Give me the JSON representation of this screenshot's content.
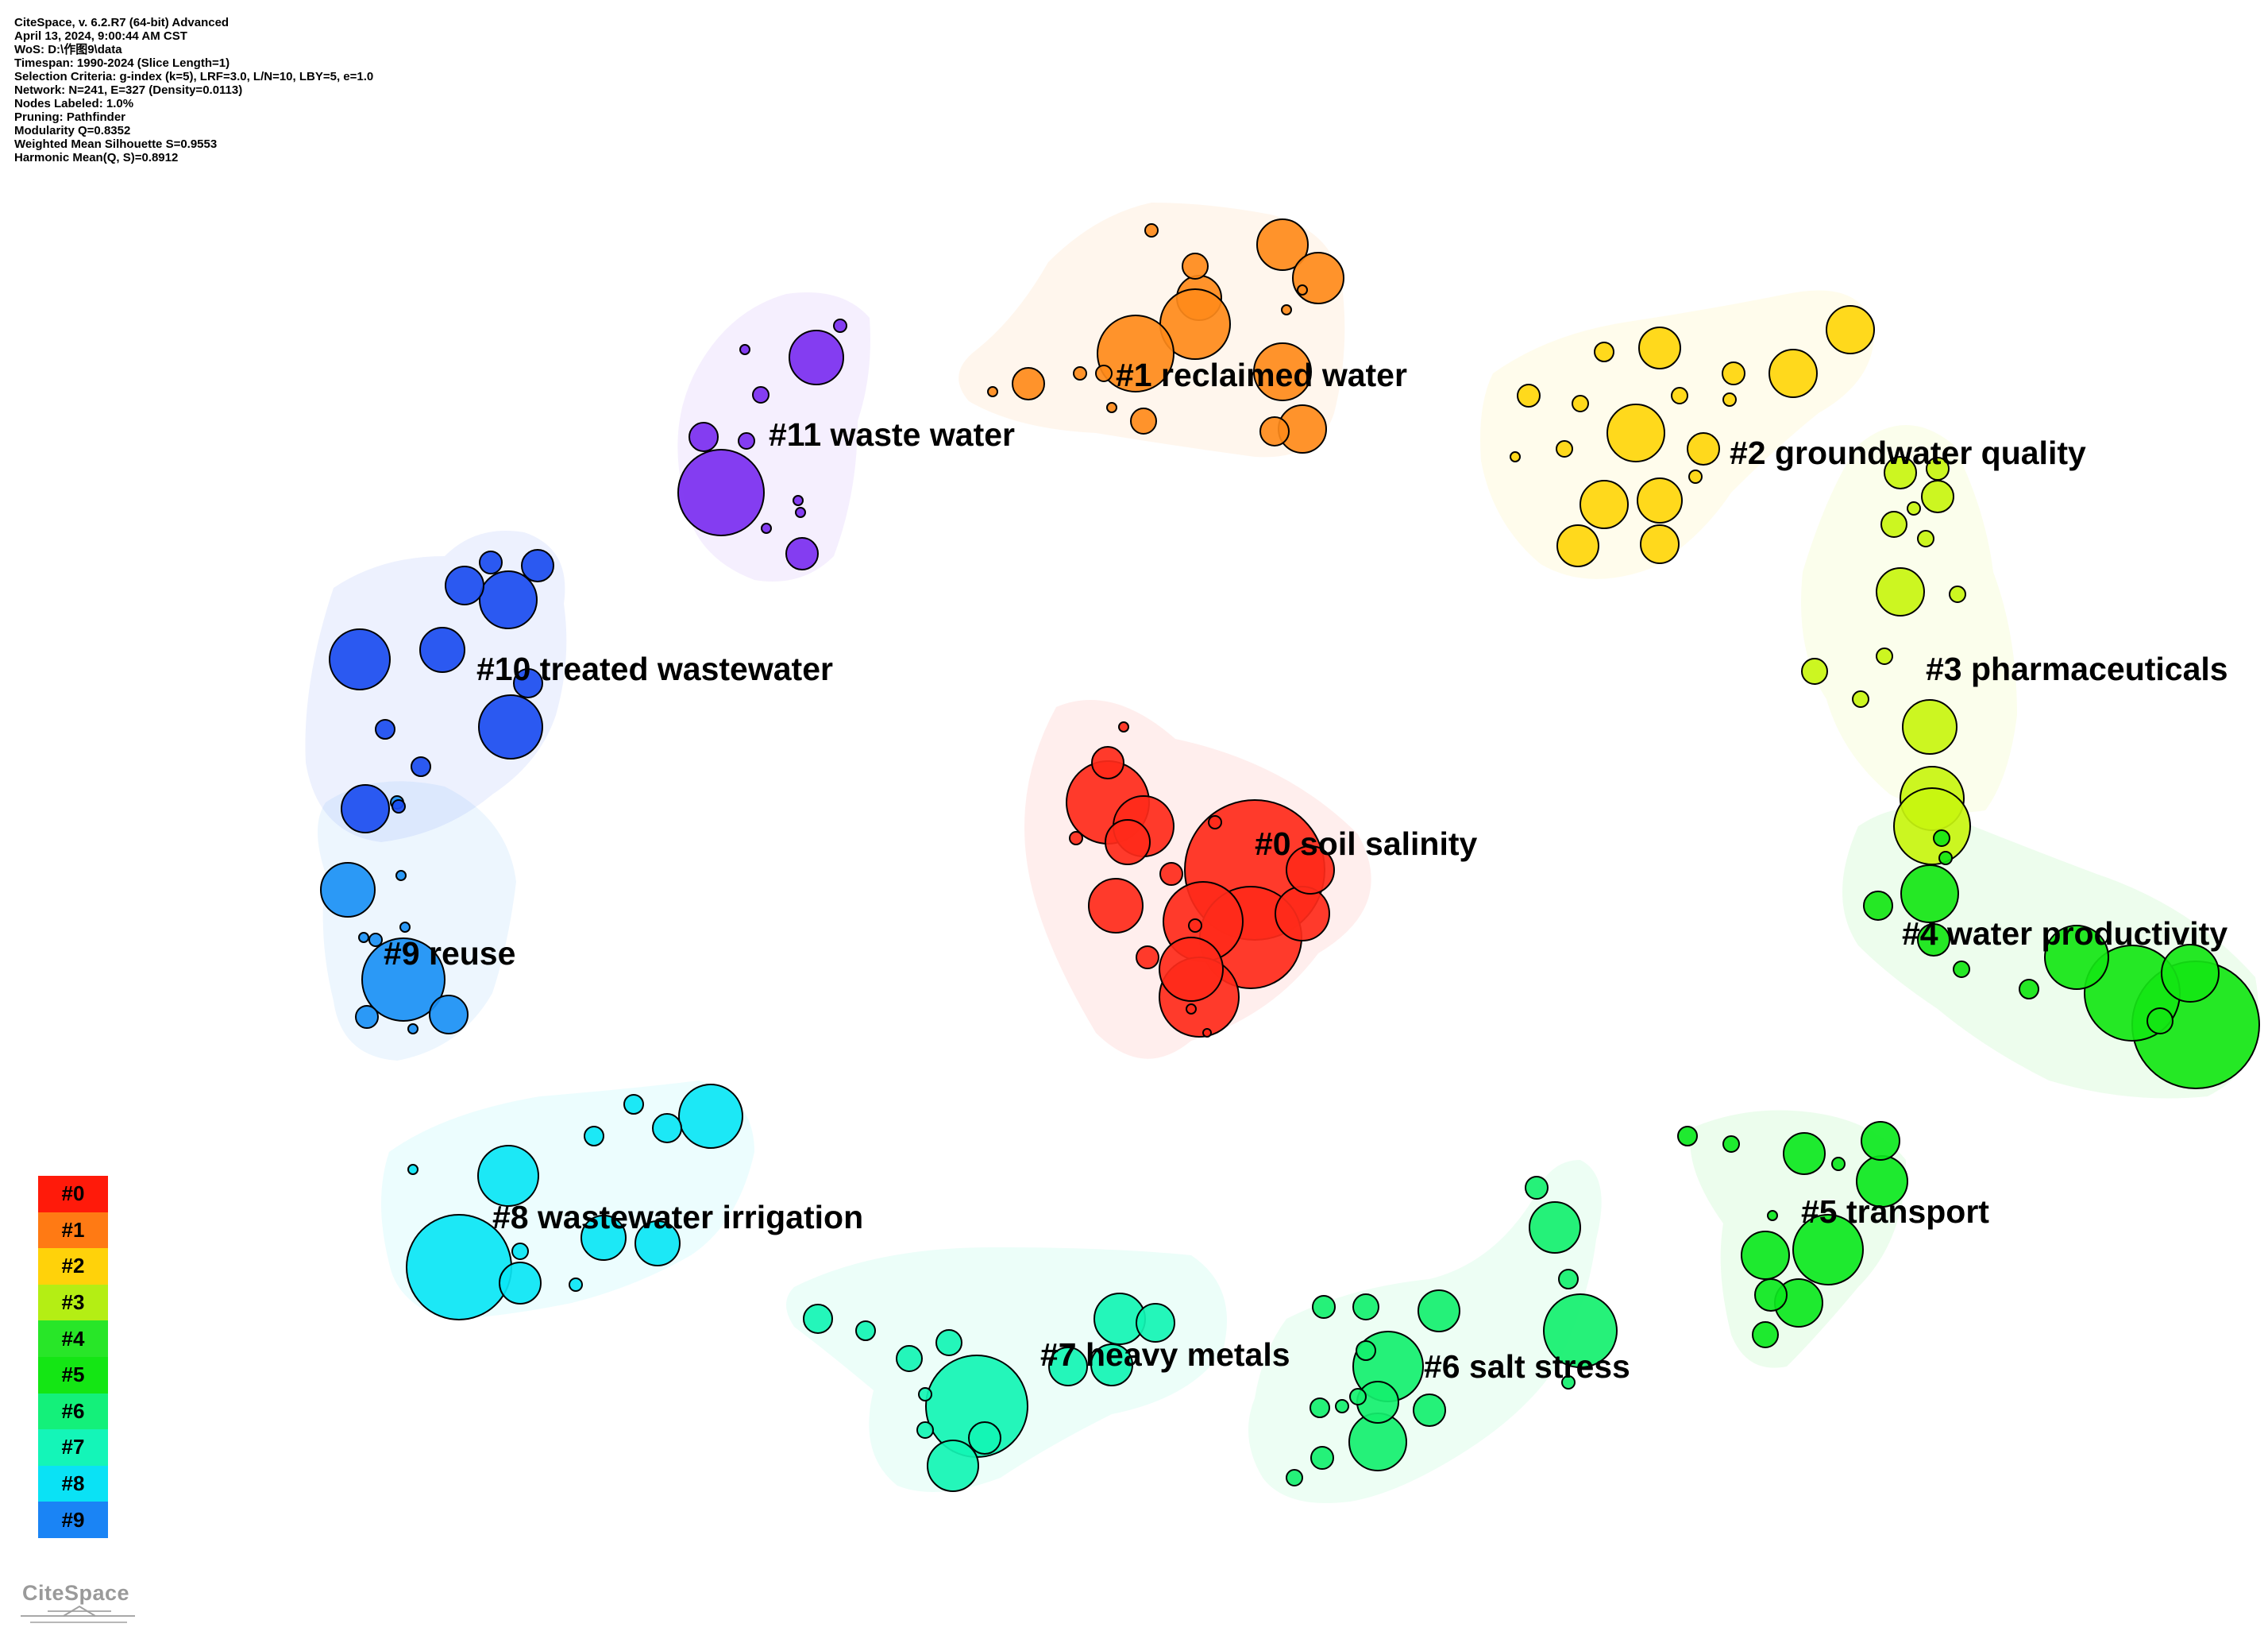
{
  "info_lines": [
    "CiteSpace, v. 6.2.R7 (64-bit) Advanced",
    "April 13, 2024, 9:00:44 AM CST",
    "WoS: D:\\作图9\\data",
    "Timespan: 1990-2024 (Slice Length=1)",
    "Selection Criteria: g-index (k=5), LRF=3.0, L/N=10, LBY=5, e=1.0",
    "Network: N=241, E=327 (Density=0.0113)",
    "Nodes Labeled: 1.0%",
    "Pruning: Pathfinder",
    "Modularity Q=0.8352",
    "Weighted Mean Silhouette S=0.9553",
    "Harmonic Mean(Q, S)=0.8912"
  ],
  "clusters": [
    {
      "id": "0",
      "label": "#0 soil salinity",
      "color": "#ff2a1a"
    },
    {
      "id": "1",
      "label": "#1 reclaimed water",
      "color": "#ff8a1a"
    },
    {
      "id": "2",
      "label": "#2 groundwater quality",
      "color": "#ffd60a"
    },
    {
      "id": "3",
      "label": "#3 pharmaceuticals",
      "color": "#c8f50f"
    },
    {
      "id": "4",
      "label": "#4 water productivity",
      "color": "#14e614"
    },
    {
      "id": "5",
      "label": "#5 transport",
      "color": "#0ce81e"
    },
    {
      "id": "6",
      "label": "#6 salt stress",
      "color": "#14f06e"
    },
    {
      "id": "7",
      "label": "#7 heavy metals",
      "color": "#12f5b4"
    },
    {
      "id": "8",
      "label": "#8 wastewater irrigation",
      "color": "#0ae6f5"
    },
    {
      "id": "9",
      "label": "#9 reuse",
      "color": "#1a90f5"
    },
    {
      "id": "10",
      "label": "#10 treated wastewater",
      "color": "#1a4cf0"
    },
    {
      "id": "11",
      "label": "#11 waste water",
      "color": "#7a2ef0"
    }
  ],
  "legend": [
    {
      "label": "#0",
      "color": "#ff1a0a"
    },
    {
      "label": "#1",
      "color": "#ff7a14"
    },
    {
      "label": "#2",
      "color": "#ffd20a"
    },
    {
      "label": "#3",
      "color": "#b4ee14"
    },
    {
      "label": "#4",
      "color": "#28e628"
    },
    {
      "label": "#5",
      "color": "#14e614"
    },
    {
      "label": "#6",
      "color": "#14f07a"
    },
    {
      "label": "#7",
      "color": "#14f5b8"
    },
    {
      "label": "#8",
      "color": "#0ae2f5"
    },
    {
      "label": "#9",
      "color": "#1a84f5"
    }
  ],
  "logo_text": "CiteSpace"
}
